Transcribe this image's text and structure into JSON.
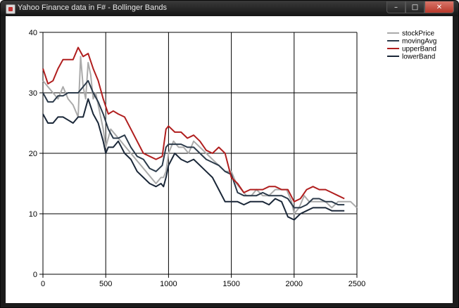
{
  "window": {
    "title": "Yahoo Finance data in F# - Bollinger Bands",
    "buttons": {
      "minimize": "–",
      "maximize": "□",
      "close": "✕"
    }
  },
  "chart_data": {
    "type": "line",
    "title": "",
    "xlabel": "",
    "ylabel": "",
    "xlim": [
      0,
      2500
    ],
    "ylim": [
      0,
      40
    ],
    "x_ticks": [
      0,
      500,
      1000,
      1500,
      2000,
      2500
    ],
    "y_ticks": [
      0,
      10,
      20,
      30,
      40
    ],
    "grid": true,
    "legend_position": "top-right",
    "series": [
      {
        "name": "stockPrice",
        "color": "#aaaaaa",
        "x": [
          0,
          40,
          80,
          120,
          160,
          200,
          240,
          280,
          300,
          320,
          340,
          360,
          380,
          400,
          420,
          450,
          480,
          500,
          540,
          580,
          620,
          660,
          700,
          740,
          780,
          820,
          860,
          900,
          940,
          960,
          980,
          1000,
          1040,
          1080,
          1120,
          1160,
          1200,
          1250,
          1300,
          1350,
          1400,
          1450,
          1500,
          1540,
          1580,
          1620,
          1660,
          1700,
          1750,
          1800,
          1850,
          1900,
          1940,
          1980,
          2000,
          2040,
          2080,
          2120,
          2160,
          2200,
          2250,
          2300,
          2350,
          2400,
          2450,
          2500
        ],
        "y": [
          32,
          31,
          30,
          29,
          31,
          29,
          28,
          26,
          36,
          31,
          29,
          35,
          33,
          29,
          30,
          27,
          24,
          21,
          24,
          23,
          22,
          21,
          20,
          19,
          18,
          17,
          16,
          15,
          16,
          16,
          17,
          20,
          22,
          21,
          21,
          20,
          22,
          21,
          20,
          19,
          18,
          17,
          17,
          15,
          14,
          13,
          13,
          14,
          13,
          13,
          14,
          14,
          14,
          12,
          10,
          11,
          13,
          12,
          12,
          12,
          12,
          11,
          12,
          12,
          12,
          11
        ]
      },
      {
        "name": "movingAvg",
        "color": "#2b3a4a",
        "x": [
          0,
          40,
          80,
          120,
          160,
          200,
          240,
          280,
          320,
          360,
          400,
          440,
          480,
          520,
          560,
          600,
          650,
          700,
          750,
          800,
          850,
          900,
          950,
          980,
          1000,
          1050,
          1100,
          1150,
          1200,
          1250,
          1300,
          1350,
          1400,
          1450,
          1500,
          1550,
          1600,
          1650,
          1700,
          1750,
          1800,
          1850,
          1900,
          1950,
          2000,
          2050,
          2100,
          2150,
          2200,
          2250,
          2300,
          2350,
          2400
        ],
        "y": [
          30,
          28.5,
          28.5,
          29.5,
          29.5,
          30,
          30,
          30,
          31,
          32,
          30,
          28.5,
          26.5,
          24,
          22.5,
          22.5,
          23,
          21,
          19.5,
          19,
          17.5,
          17,
          18,
          21,
          21.5,
          21.5,
          21.5,
          21,
          21,
          20,
          19,
          18.5,
          18,
          17,
          16.5,
          13.5,
          13,
          13,
          13,
          13.5,
          13,
          13,
          13,
          12.5,
          11,
          11,
          11.5,
          12.5,
          12.5,
          12,
          12,
          11.5,
          11.5
        ]
      },
      {
        "name": "upperBand",
        "color": "#b01e1e",
        "x": [
          0,
          40,
          80,
          120,
          160,
          200,
          240,
          280,
          320,
          360,
          400,
          440,
          480,
          520,
          560,
          600,
          650,
          700,
          750,
          800,
          850,
          900,
          950,
          980,
          1000,
          1050,
          1100,
          1150,
          1200,
          1250,
          1300,
          1350,
          1400,
          1450,
          1500,
          1550,
          1600,
          1650,
          1700,
          1750,
          1800,
          1850,
          1900,
          1950,
          2000,
          2050,
          2100,
          2150,
          2200,
          2250,
          2300,
          2350,
          2400
        ],
        "y": [
          34,
          31.5,
          32,
          34,
          35.5,
          35.5,
          35.5,
          37.5,
          36,
          36.5,
          34,
          32,
          29,
          26.5,
          27,
          26.5,
          26,
          24,
          22,
          20,
          19.5,
          19,
          19.5,
          24,
          24.5,
          23.5,
          23.5,
          22.5,
          23,
          22,
          20.5,
          20,
          21,
          20,
          16,
          15,
          13.5,
          14,
          14,
          14,
          14.5,
          14.5,
          14,
          14,
          12,
          12.5,
          14,
          14.5,
          14,
          14,
          13.5,
          13,
          12.5
        ]
      },
      {
        "name": "lowerBand",
        "color": "#1a2738",
        "x": [
          0,
          40,
          80,
          120,
          160,
          200,
          240,
          280,
          320,
          360,
          400,
          440,
          480,
          500,
          520,
          560,
          600,
          650,
          700,
          750,
          800,
          850,
          900,
          940,
          960,
          980,
          1000,
          1050,
          1100,
          1150,
          1200,
          1250,
          1300,
          1350,
          1400,
          1450,
          1500,
          1550,
          1600,
          1650,
          1700,
          1750,
          1800,
          1850,
          1900,
          1950,
          2000,
          2050,
          2100,
          2150,
          2200,
          2250,
          2300,
          2350,
          2400
        ],
        "y": [
          26.5,
          25,
          25,
          26,
          26,
          25.5,
          25,
          26,
          26,
          29,
          26.5,
          25,
          22,
          20,
          21,
          21,
          22,
          20,
          19,
          17,
          16,
          15,
          14.5,
          15,
          14.5,
          16,
          18,
          20,
          19,
          18.5,
          19,
          18,
          17,
          16,
          14,
          12,
          12,
          12,
          11.5,
          12,
          12,
          12,
          11.5,
          12.5,
          12,
          9.5,
          9,
          10,
          10.5,
          11,
          11,
          11,
          10.5,
          10.5,
          10.5
        ]
      }
    ]
  }
}
